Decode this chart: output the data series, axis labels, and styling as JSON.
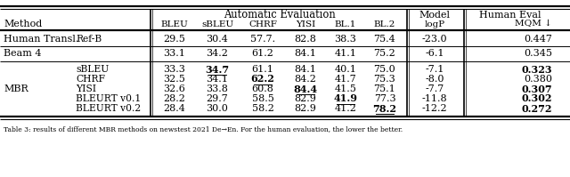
{
  "rows": [
    {
      "method1": "Human Transl.",
      "method2": "Ref-B",
      "vals": [
        "29.5",
        "30.4",
        "57.7.",
        "82.8",
        "38.3",
        "75.4",
        "-23.0",
        "0.447"
      ],
      "bold": [],
      "underline": []
    },
    {
      "method1": "Beam 4",
      "method2": "",
      "vals": [
        "33.1",
        "34.2",
        "61.2",
        "84.1",
        "41.1",
        "75.2",
        "-6.1",
        "0.345"
      ],
      "bold": [],
      "underline": []
    },
    {
      "method1": "MBR",
      "method2": "sBLEU",
      "vals": [
        "33.3",
        "34.7",
        "61.1",
        "84.1",
        "40.1",
        "75.0",
        "-7.1",
        "0.323"
      ],
      "bold": [
        1,
        7
      ],
      "underline": [
        1
      ]
    },
    {
      "method1": "",
      "method2": "CHRF",
      "vals": [
        "32.5",
        "34.1",
        "62.2",
        "84.2",
        "41.7",
        "75.3",
        "-8.0",
        "0.380"
      ],
      "bold": [
        2
      ],
      "underline": [
        2
      ]
    },
    {
      "method1": "",
      "method2": "YISI",
      "vals": [
        "32.6",
        "33.8",
        "60.8",
        "84.4",
        "41.5",
        "75.1",
        "-7.7",
        "0.307"
      ],
      "bold": [
        3,
        7
      ],
      "underline": [
        3
      ]
    },
    {
      "method1": "",
      "method2": "BLEURT v0.1",
      "vals": [
        "28.2",
        "29.7",
        "58.5",
        "82.9",
        "41.9",
        "77.3",
        "-11.8",
        "0.302"
      ],
      "bold": [
        4,
        7
      ],
      "underline": [
        4
      ]
    },
    {
      "method1": "",
      "method2": "BLEURT v0.2",
      "vals": [
        "28.4",
        "30.0",
        "58.2",
        "82.9",
        "41.2",
        "78.2",
        "-12.2",
        "0.272"
      ],
      "bold": [
        5,
        7
      ],
      "underline": [
        5
      ]
    }
  ],
  "col_headers": [
    "BLEU",
    "sBLEU",
    "CHRF",
    "YISI",
    "BL.1",
    "BL.2",
    "logP",
    "MQM"
  ],
  "bg_color": "#ffffff",
  "font_size": 8.0
}
